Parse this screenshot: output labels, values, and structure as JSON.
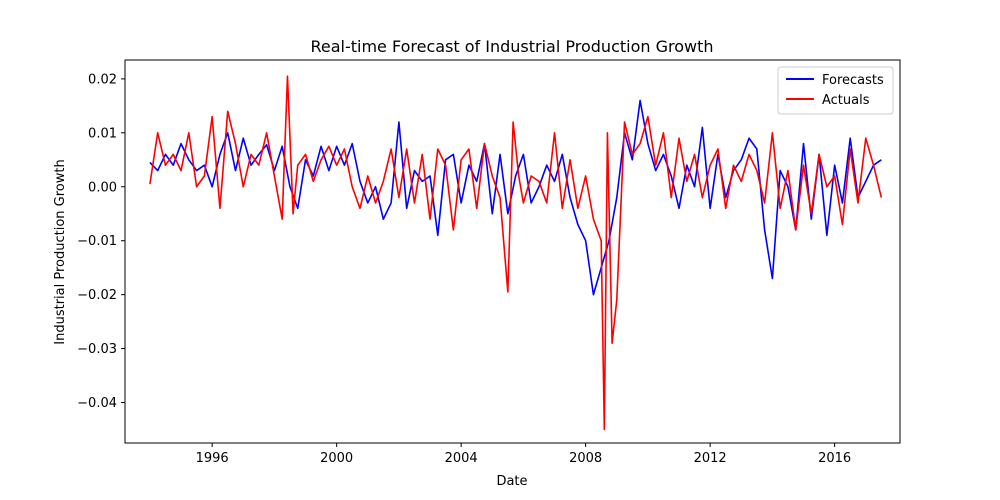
{
  "chart_data": {
    "type": "line",
    "title": "Real-time Forecast of Industrial Production Growth",
    "xlabel": "Date",
    "ylabel": "Industrial Production Growth",
    "xlim": [
      1993.2,
      2018.1
    ],
    "ylim": [
      -0.0475,
      0.0235
    ],
    "x_ticks": [
      1996,
      2000,
      2004,
      2008,
      2012,
      2016
    ],
    "x_tick_labels": [
      "1996",
      "2000",
      "2004",
      "2008",
      "2012",
      "2016"
    ],
    "y_ticks": [
      0.02,
      0.01,
      0.0,
      -0.01,
      -0.02,
      -0.03,
      -0.04
    ],
    "y_tick_labels": [
      "0.02",
      "0.01",
      "0.00",
      "−0.01",
      "−0.02",
      "−0.03",
      "−0.04"
    ],
    "legend_position": "top-right",
    "grid": false,
    "series": [
      {
        "name": "Forecasts",
        "color": "#0000ff",
        "x": [
          1994.0,
          1994.25,
          1994.5,
          1994.75,
          1995.0,
          1995.25,
          1995.5,
          1995.75,
          1996.0,
          1996.25,
          1996.5,
          1996.75,
          1997.0,
          1997.25,
          1997.5,
          1997.75,
          1998.0,
          1998.25,
          1998.5,
          1998.75,
          1999.0,
          1999.25,
          1999.5,
          1999.75,
          2000.0,
          2000.25,
          2000.5,
          2000.75,
          2001.0,
          2001.25,
          2001.5,
          2001.75,
          2002.0,
          2002.25,
          2002.5,
          2002.75,
          2003.0,
          2003.25,
          2003.5,
          2003.75,
          2004.0,
          2004.25,
          2004.5,
          2004.75,
          2005.0,
          2005.25,
          2005.5,
          2005.75,
          2006.0,
          2006.25,
          2006.5,
          2006.75,
          2007.0,
          2007.25,
          2007.5,
          2007.75,
          2008.0,
          2008.25,
          2008.5,
          2008.75,
          2009.0,
          2009.25,
          2009.5,
          2009.75,
          2010.0,
          2010.25,
          2010.5,
          2010.75,
          2011.0,
          2011.25,
          2011.5,
          2011.75,
          2012.0,
          2012.25,
          2012.5,
          2012.75,
          2013.0,
          2013.25,
          2013.5,
          2013.75,
          2014.0,
          2014.25,
          2014.5,
          2014.75,
          2015.0,
          2015.25,
          2015.5,
          2015.75,
          2016.0,
          2016.25,
          2016.5,
          2016.75,
          2017.0,
          2017.25,
          2017.5
        ],
        "values": [
          0.0045,
          0.003,
          0.006,
          0.004,
          0.008,
          0.005,
          0.003,
          0.004,
          0.0,
          0.006,
          0.01,
          0.003,
          0.009,
          0.004,
          0.006,
          0.0078,
          0.003,
          0.0075,
          0.0,
          -0.004,
          0.005,
          0.002,
          0.0075,
          0.003,
          0.0075,
          0.004,
          0.008,
          0.001,
          -0.003,
          0.0,
          -0.006,
          -0.003,
          0.012,
          -0.004,
          0.003,
          0.001,
          0.002,
          -0.009,
          0.005,
          0.006,
          -0.003,
          0.004,
          0.001,
          0.008,
          -0.005,
          0.006,
          -0.005,
          0.002,
          0.006,
          -0.003,
          0.0,
          0.004,
          0.001,
          0.006,
          -0.002,
          -0.007,
          -0.01,
          -0.02,
          -0.015,
          -0.01,
          -0.002,
          0.01,
          0.005,
          0.016,
          0.008,
          0.003,
          0.006,
          0.002,
          -0.004,
          0.004,
          0.0,
          0.011,
          -0.004,
          0.006,
          -0.002,
          0.003,
          0.005,
          0.009,
          0.007,
          -0.008,
          -0.017,
          0.003,
          0.0,
          -0.008,
          0.008,
          -0.006,
          0.006,
          -0.009,
          0.004,
          -0.003,
          0.009,
          -0.002,
          0.001,
          0.004,
          0.005
        ]
      },
      {
        "name": "Actuals",
        "color": "#ff0000",
        "x": [
          1994.0,
          1994.25,
          1994.5,
          1994.75,
          1995.0,
          1995.25,
          1995.5,
          1995.75,
          1996.0,
          1996.25,
          1996.5,
          1996.75,
          1997.0,
          1997.25,
          1997.5,
          1997.75,
          1998.0,
          1998.25,
          1998.42,
          1998.6,
          1998.75,
          1999.0,
          1999.25,
          1999.5,
          1999.75,
          2000.0,
          2000.25,
          2000.5,
          2000.75,
          2001.0,
          2001.25,
          2001.5,
          2001.75,
          2002.0,
          2002.25,
          2002.5,
          2002.75,
          2003.0,
          2003.25,
          2003.5,
          2003.75,
          2004.0,
          2004.25,
          2004.5,
          2004.75,
          2005.0,
          2005.25,
          2005.5,
          2005.67,
          2005.85,
          2006.0,
          2006.25,
          2006.5,
          2006.75,
          2007.0,
          2007.25,
          2007.5,
          2007.75,
          2008.0,
          2008.25,
          2008.5,
          2008.6,
          2008.7,
          2008.85,
          2009.0,
          2009.25,
          2009.5,
          2009.75,
          2010.0,
          2010.25,
          2010.5,
          2010.75,
          2011.0,
          2011.25,
          2011.5,
          2011.75,
          2012.0,
          2012.25,
          2012.5,
          2012.75,
          2013.0,
          2013.25,
          2013.5,
          2013.75,
          2014.0,
          2014.25,
          2014.5,
          2014.75,
          2015.0,
          2015.25,
          2015.5,
          2015.75,
          2016.0,
          2016.25,
          2016.5,
          2016.75,
          2017.0,
          2017.25,
          2017.5
        ],
        "values": [
          0.0005,
          0.01,
          0.004,
          0.006,
          0.003,
          0.01,
          0.0,
          0.002,
          0.013,
          -0.004,
          0.014,
          0.008,
          0.0,
          0.006,
          0.004,
          0.01,
          0.002,
          -0.006,
          0.0205,
          -0.005,
          0.004,
          0.006,
          0.001,
          0.005,
          0.0075,
          0.004,
          0.007,
          0.0,
          -0.004,
          0.002,
          -0.003,
          0.001,
          0.007,
          -0.002,
          0.007,
          -0.003,
          0.006,
          -0.006,
          0.007,
          0.004,
          -0.008,
          0.005,
          0.007,
          -0.004,
          0.008,
          0.002,
          -0.002,
          -0.0195,
          0.012,
          0.002,
          -0.003,
          0.002,
          0.001,
          -0.003,
          0.01,
          -0.004,
          0.005,
          -0.004,
          0.002,
          -0.006,
          -0.01,
          -0.045,
          0.01,
          -0.029,
          -0.021,
          0.012,
          0.006,
          0.008,
          0.013,
          0.004,
          0.01,
          -0.002,
          0.009,
          0.001,
          0.006,
          -0.002,
          0.004,
          0.007,
          -0.004,
          0.004,
          0.001,
          0.006,
          0.003,
          -0.003,
          0.01,
          -0.004,
          0.003,
          -0.008,
          0.004,
          -0.005,
          0.006,
          0.0,
          0.002,
          -0.007,
          0.007,
          -0.003,
          0.009,
          0.004,
          -0.002
        ]
      }
    ]
  }
}
